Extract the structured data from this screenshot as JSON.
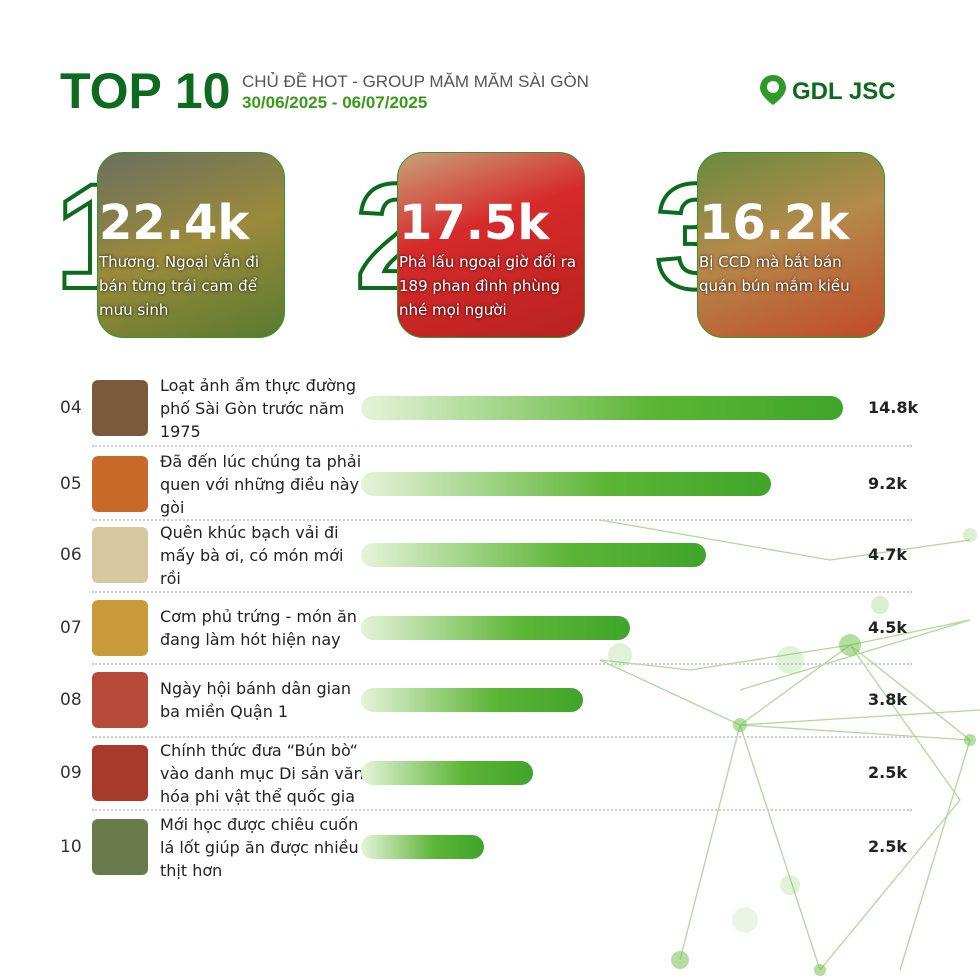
{
  "header": {
    "title": "TOP 10",
    "subtitle": "CHỦ ĐỀ HOT - GROUP MĂM MĂM SÀI GÒN",
    "date": "30/06/2025 - 06/07/2025",
    "logo": "GDL JSC"
  },
  "top3": [
    {
      "rank": "1",
      "value": "22.4k",
      "caption": "Thương. Ngoại vẫn đi bán từng trái cam để mưu sinh"
    },
    {
      "rank": "2",
      "value": "17.5k",
      "caption": "Phá lấu ngoại giờ đổi ra 189 phan đình phùng nhé mọi người"
    },
    {
      "rank": "3",
      "value": "16.2k",
      "caption": "Bị CCD mà bắt bán quán bún mắm kiều"
    }
  ],
  "rows": [
    {
      "rank": "04",
      "title": "Loạt ảnh ẩm thực đường phố Sài Gòn trước năm 1975",
      "value": "14.8k"
    },
    {
      "rank": "05",
      "title": "Đã đến lúc chúng ta phải quen với những điều này gòi",
      "value": "9.2k"
    },
    {
      "rank": "06",
      "title": "Quên khúc bạch vải đi mấy bà ơi, có món mới rồi",
      "value": "4.7k"
    },
    {
      "rank": "07",
      "title": "Cơm phủ trứng - món ăn đang làm hót hiện nay",
      "value": "4.5k"
    },
    {
      "rank": "08",
      "title": "Ngày hội bánh dân gian ba miền Quận 1",
      "value": "3.8k"
    },
    {
      "rank": "09",
      "title": "Chính thức đưa “Bún bò“ vào danh mục Di sản văn hóa phi vật thể quốc gia",
      "value": "2.5k"
    },
    {
      "rank": "10",
      "title": "Mới học được chiêu cuốn lá lốt giúp ăn được nhiều thịt hơn",
      "value": "2.5k"
    }
  ]
}
